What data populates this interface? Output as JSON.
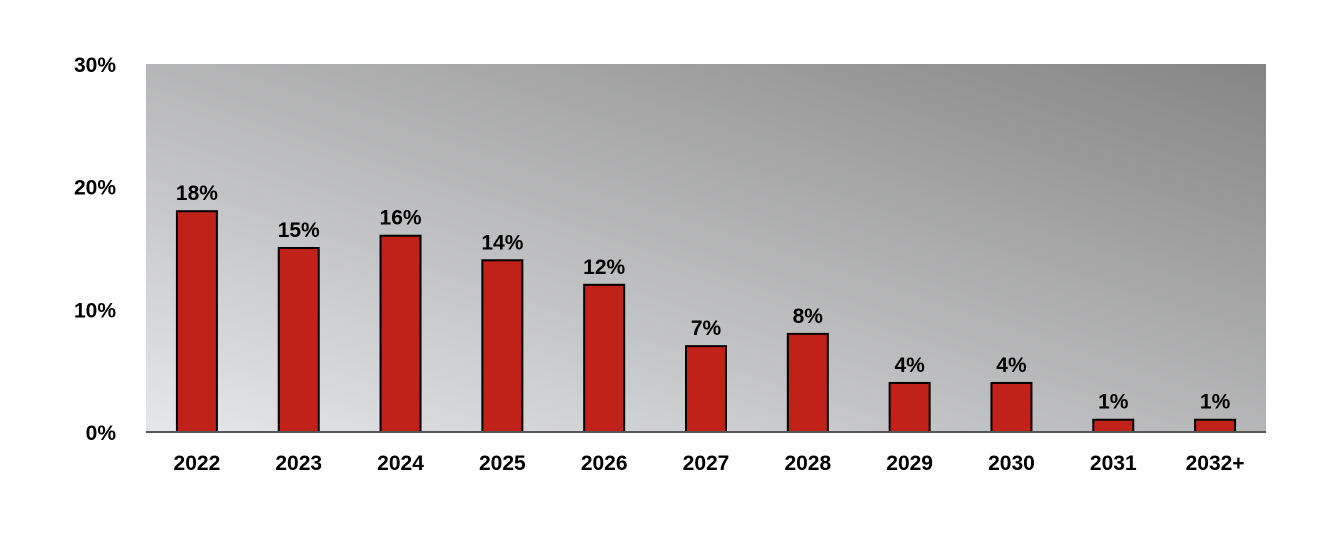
{
  "chart_data": {
    "type": "bar",
    "categories": [
      "2022",
      "2023",
      "2024",
      "2025",
      "2026",
      "2027",
      "2028",
      "2029",
      "2030",
      "2031",
      "2032+"
    ],
    "values": [
      18,
      15,
      16,
      14,
      12,
      7,
      8,
      4,
      4,
      1,
      1
    ],
    "value_labels": [
      "18%",
      "15%",
      "16%",
      "14%",
      "12%",
      "7%",
      "8%",
      "4%",
      "4%",
      "1%",
      "1%"
    ],
    "yticks": [
      0,
      10,
      20,
      30
    ],
    "ytick_labels": [
      "0%",
      "10%",
      "20%",
      "30%"
    ],
    "ylim": [
      0,
      30
    ],
    "grid": false,
    "legend": "none",
    "title": "",
    "xlabel": "",
    "ylabel": "",
    "colors": {
      "bar_fill": "#c0221a",
      "bar_stroke": "#000000",
      "plot_gradient_light": "#e6e7e9",
      "plot_gradient_dark": "#858585",
      "axis": "#555555"
    }
  }
}
